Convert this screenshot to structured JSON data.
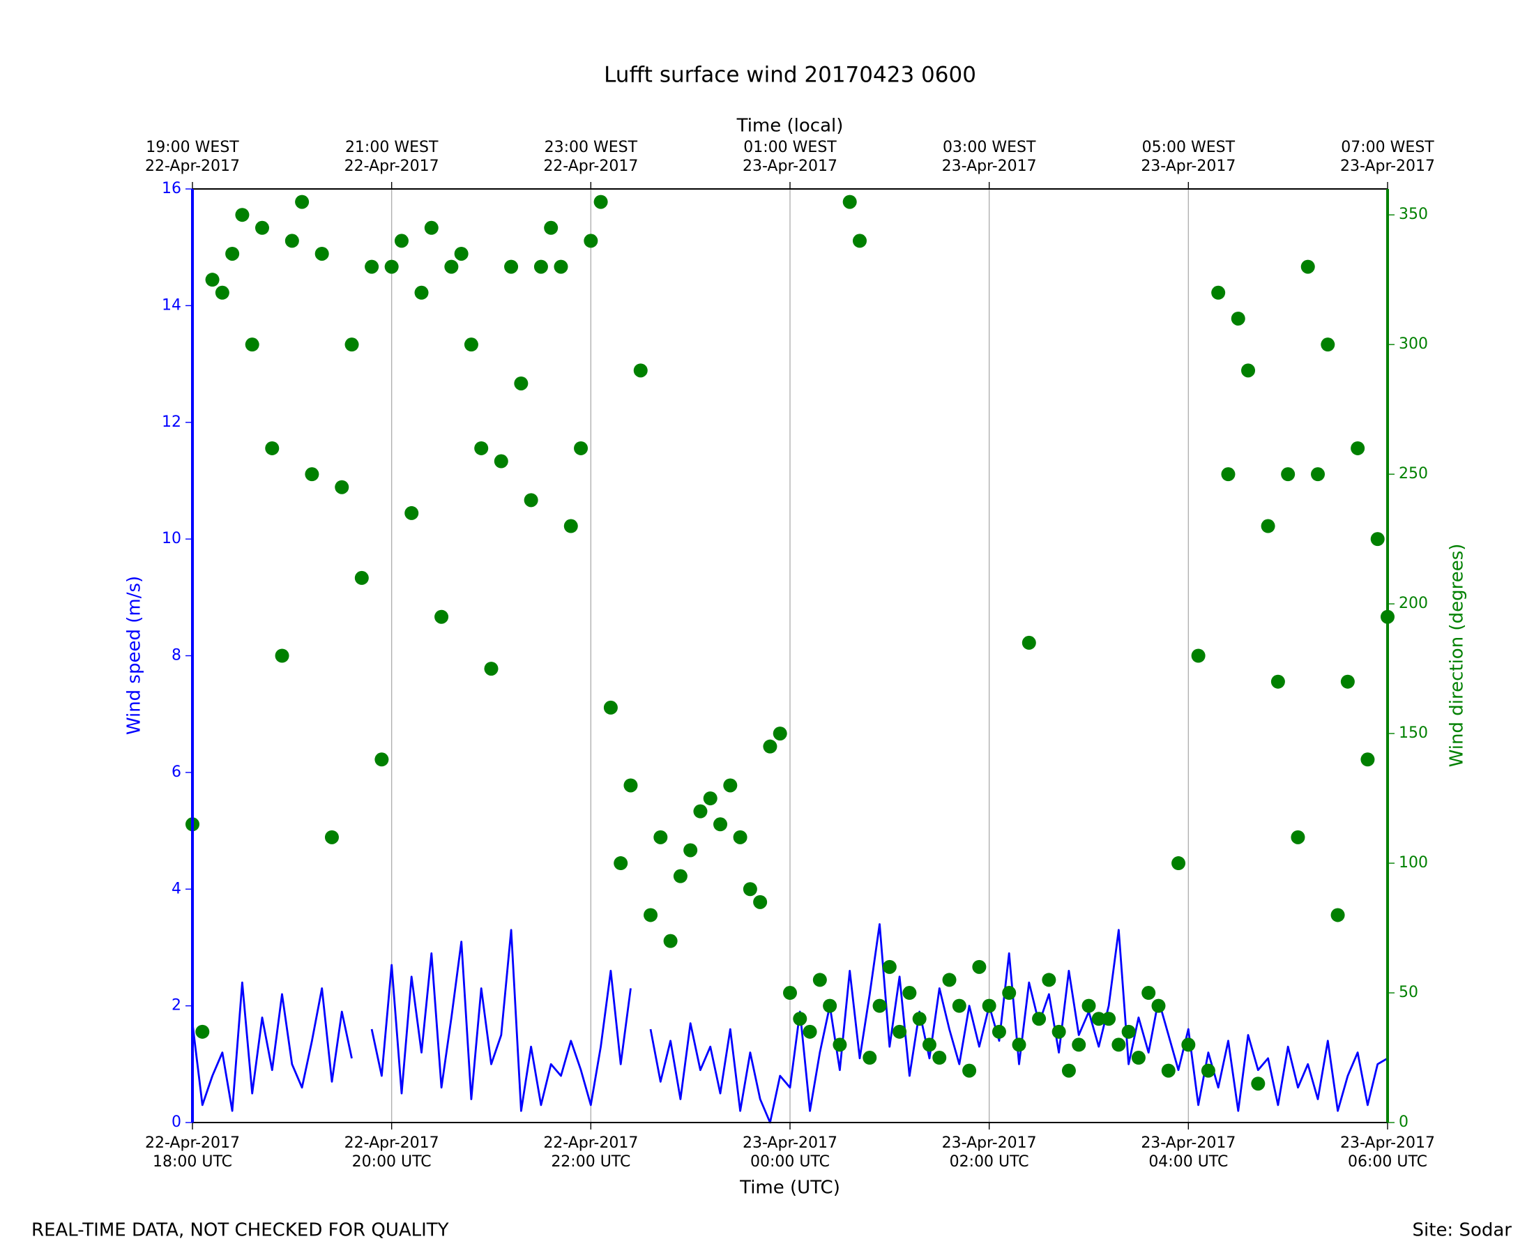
{
  "chart_data": {
    "type": "line",
    "title": "Lufft surface wind 20170423 0600",
    "xlabel": "Time (UTC)",
    "x2label": "Time (local)",
    "ylabel": "Wind speed (m/s)",
    "y2label": "Wind direction (degrees)",
    "footer": {
      "left": "REAL-TIME DATA, NOT CHECKED FOR QUALITY",
      "right": "Site: Sodar"
    },
    "grid": "x",
    "xlim": [
      "2017-04-22T18:00",
      "2017-04-23T06:00"
    ],
    "xticks": [
      {
        "value": "2017-04-22T18:00",
        "label": [
          "22-Apr-2017",
          "18:00 UTC"
        ]
      },
      {
        "value": "2017-04-22T20:00",
        "label": [
          "22-Apr-2017",
          "20:00 UTC"
        ]
      },
      {
        "value": "2017-04-22T22:00",
        "label": [
          "22-Apr-2017",
          "22:00 UTC"
        ]
      },
      {
        "value": "2017-04-23T00:00",
        "label": [
          "23-Apr-2017",
          "00:00 UTC"
        ]
      },
      {
        "value": "2017-04-23T02:00",
        "label": [
          "23-Apr-2017",
          "02:00 UTC"
        ]
      },
      {
        "value": "2017-04-23T04:00",
        "label": [
          "23-Apr-2017",
          "04:00 UTC"
        ]
      },
      {
        "value": "2017-04-23T06:00",
        "label": [
          "23-Apr-2017",
          "06:00 UTC"
        ]
      }
    ],
    "x2ticks": [
      {
        "value": "2017-04-22T18:00",
        "label": [
          "19:00 WEST",
          "22-Apr-2017"
        ]
      },
      {
        "value": "2017-04-22T20:00",
        "label": [
          "21:00 WEST",
          "22-Apr-2017"
        ]
      },
      {
        "value": "2017-04-22T22:00",
        "label": [
          "23:00 WEST",
          "22-Apr-2017"
        ]
      },
      {
        "value": "2017-04-23T00:00",
        "label": [
          "01:00 WEST",
          "23-Apr-2017"
        ]
      },
      {
        "value": "2017-04-23T02:00",
        "label": [
          "03:00 WEST",
          "23-Apr-2017"
        ]
      },
      {
        "value": "2017-04-23T04:00",
        "label": [
          "05:00 WEST",
          "23-Apr-2017"
        ]
      },
      {
        "value": "2017-04-23T06:00",
        "label": [
          "07:00 WEST",
          "23-Apr-2017"
        ]
      }
    ],
    "ylim": [
      0,
      16
    ],
    "yticks": [
      0,
      2,
      4,
      6,
      8,
      10,
      12,
      14,
      16
    ],
    "ycolor": "#0000ff",
    "y2lim": [
      0,
      360
    ],
    "y2ticks": [
      0,
      50,
      100,
      150,
      200,
      250,
      300,
      350
    ],
    "y2color": "#008000",
    "x": [
      "2017-04-22T18:00",
      "2017-04-22T18:06",
      "2017-04-22T18:12",
      "2017-04-22T18:18",
      "2017-04-22T18:24",
      "2017-04-22T18:30",
      "2017-04-22T18:36",
      "2017-04-22T18:42",
      "2017-04-22T18:48",
      "2017-04-22T18:54",
      "2017-04-22T19:00",
      "2017-04-22T19:06",
      "2017-04-22T19:12",
      "2017-04-22T19:18",
      "2017-04-22T19:24",
      "2017-04-22T19:30",
      "2017-04-22T19:36",
      "2017-04-22T19:42",
      "2017-04-22T19:48",
      "2017-04-22T19:54",
      "2017-04-22T20:00",
      "2017-04-22T20:06",
      "2017-04-22T20:12",
      "2017-04-22T20:18",
      "2017-04-22T20:24",
      "2017-04-22T20:30",
      "2017-04-22T20:36",
      "2017-04-22T20:42",
      "2017-04-22T20:48",
      "2017-04-22T20:54",
      "2017-04-22T21:00",
      "2017-04-22T21:06",
      "2017-04-22T21:12",
      "2017-04-22T21:18",
      "2017-04-22T21:24",
      "2017-04-22T21:30",
      "2017-04-22T21:36",
      "2017-04-22T21:42",
      "2017-04-22T21:48",
      "2017-04-22T21:54",
      "2017-04-22T22:00",
      "2017-04-22T22:06",
      "2017-04-22T22:12",
      "2017-04-22T22:18",
      "2017-04-22T22:24",
      "2017-04-22T22:30",
      "2017-04-22T22:36",
      "2017-04-22T22:42",
      "2017-04-22T22:48",
      "2017-04-22T22:54",
      "2017-04-22T23:00",
      "2017-04-22T23:06",
      "2017-04-22T23:12",
      "2017-04-22T23:18",
      "2017-04-22T23:24",
      "2017-04-22T23:30",
      "2017-04-22T23:36",
      "2017-04-22T23:42",
      "2017-04-22T23:48",
      "2017-04-22T23:54",
      "2017-04-23T00:00",
      "2017-04-23T00:06",
      "2017-04-23T00:12",
      "2017-04-23T00:18",
      "2017-04-23T00:24",
      "2017-04-23T00:30",
      "2017-04-23T00:36",
      "2017-04-23T00:42",
      "2017-04-23T00:48",
      "2017-04-23T00:54",
      "2017-04-23T01:00",
      "2017-04-23T01:06",
      "2017-04-23T01:12",
      "2017-04-23T01:18",
      "2017-04-23T01:24",
      "2017-04-23T01:30",
      "2017-04-23T01:36",
      "2017-04-23T01:42",
      "2017-04-23T01:48",
      "2017-04-23T01:54",
      "2017-04-23T02:00",
      "2017-04-23T02:06",
      "2017-04-23T02:12",
      "2017-04-23T02:18",
      "2017-04-23T02:24",
      "2017-04-23T02:30",
      "2017-04-23T02:36",
      "2017-04-23T02:42",
      "2017-04-23T02:48",
      "2017-04-23T02:54",
      "2017-04-23T03:00",
      "2017-04-23T03:06",
      "2017-04-23T03:12",
      "2017-04-23T03:18",
      "2017-04-23T03:24",
      "2017-04-23T03:30",
      "2017-04-23T03:36",
      "2017-04-23T03:42",
      "2017-04-23T03:48",
      "2017-04-23T03:54",
      "2017-04-23T04:00",
      "2017-04-23T04:06",
      "2017-04-23T04:12",
      "2017-04-23T04:18",
      "2017-04-23T04:24",
      "2017-04-23T04:30",
      "2017-04-23T04:36",
      "2017-04-23T04:42",
      "2017-04-23T04:48",
      "2017-04-23T04:54",
      "2017-04-23T05:00",
      "2017-04-23T05:06",
      "2017-04-23T05:12",
      "2017-04-23T05:18",
      "2017-04-23T05:24",
      "2017-04-23T05:30",
      "2017-04-23T05:36",
      "2017-04-23T05:42",
      "2017-04-23T05:48",
      "2017-04-23T05:54",
      "2017-04-23T06:00"
    ],
    "series": [
      {
        "type": "line",
        "color": "#0000ff",
        "values": [
          1.7,
          0.3,
          0.8,
          1.2,
          0.2,
          2.4,
          0.5,
          1.8,
          0.9,
          2.2,
          1.0,
          0.6,
          1.4,
          2.3,
          0.7,
          1.9,
          1.1,
          null,
          1.6,
          0.8,
          2.7,
          0.5,
          2.5,
          1.2,
          2.9,
          0.6,
          1.8,
          3.1,
          0.4,
          2.3,
          1.0,
          1.5,
          3.3,
          0.2,
          1.3,
          0.3,
          1.0,
          0.8,
          1.4,
          0.9,
          0.3,
          1.3,
          2.6,
          1.0,
          2.3,
          null,
          1.6,
          0.7,
          1.4,
          0.4,
          1.7,
          0.9,
          1.3,
          0.5,
          1.6,
          0.2,
          1.2,
          0.4,
          0.0,
          0.8,
          0.6,
          1.9,
          0.2,
          1.2,
          2.0,
          0.9,
          2.6,
          1.1,
          2.2,
          3.4,
          1.3,
          2.5,
          0.8,
          1.9,
          1.1,
          2.3,
          1.6,
          1.0,
          2.0,
          1.3,
          2.0,
          1.4,
          2.9,
          1.0,
          2.4,
          1.7,
          2.2,
          1.2,
          2.6,
          1.5,
          1.9,
          1.3,
          2.0,
          3.3,
          1.0,
          1.8,
          1.2,
          2.1,
          1.5,
          0.9,
          1.6,
          0.3,
          1.2,
          0.6,
          1.4,
          0.2,
          1.5,
          0.9,
          1.1,
          0.3,
          1.3,
          0.6,
          1.0,
          0.4,
          1.4,
          0.2,
          0.8,
          1.2,
          0.3,
          1.0,
          1.1
        ]
      },
      {
        "type": "scatter",
        "axis": "y2",
        "color": "#008000",
        "values": [
          115,
          35,
          325,
          320,
          335,
          350,
          300,
          345,
          260,
          180,
          340,
          355,
          250,
          335,
          110,
          245,
          300,
          210,
          330,
          140,
          330,
          340,
          235,
          320,
          345,
          195,
          330,
          335,
          300,
          260,
          175,
          255,
          330,
          285,
          240,
          330,
          345,
          330,
          230,
          260,
          340,
          355,
          160,
          100,
          130,
          290,
          80,
          110,
          70,
          95,
          105,
          120,
          125,
          115,
          130,
          110,
          90,
          85,
          145,
          150,
          50,
          40,
          35,
          55,
          45,
          30,
          355,
          340,
          25,
          45,
          60,
          35,
          50,
          40,
          30,
          25,
          55,
          45,
          20,
          60,
          45,
          35,
          50,
          30,
          185,
          40,
          55,
          35,
          20,
          30,
          45,
          40,
          40,
          30,
          35,
          25,
          50,
          45,
          20,
          100,
          30,
          180,
          20,
          320,
          250,
          310,
          290,
          15,
          230,
          170,
          250,
          110,
          330,
          250,
          300,
          80,
          170,
          260,
          140,
          225,
          195
        ]
      }
    ]
  }
}
